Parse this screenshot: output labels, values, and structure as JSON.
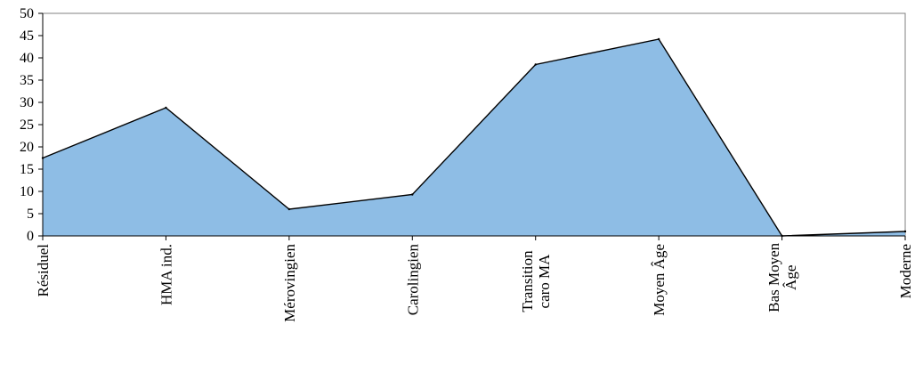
{
  "chart_data": {
    "type": "area",
    "categories": [
      "Résiduel",
      "HMA ind.",
      "Mérovingien",
      "Carolingien",
      "Transition caro MA",
      "Moyen Âge",
      "Bas Moyen Âge",
      "Moderne"
    ],
    "category_lines": [
      [
        "Résiduel"
      ],
      [
        "HMA ind."
      ],
      [
        "Mérovingien"
      ],
      [
        "Carolingien"
      ],
      [
        "Transition",
        "caro MA"
      ],
      [
        "Moyen Âge"
      ],
      [
        "Bas Moyen",
        "Âge"
      ],
      [
        "Moderne"
      ]
    ],
    "series": [
      {
        "values": [
          17.5,
          28.8,
          6.0,
          9.3,
          38.5,
          44.2,
          0.0,
          1.0
        ]
      }
    ],
    "title": "",
    "xlabel": "",
    "ylabel": "",
    "ylim": [
      0,
      50
    ],
    "yticks": [
      0,
      5,
      10,
      15,
      20,
      25,
      30,
      35,
      40,
      45,
      50
    ],
    "grid": false,
    "legend": "none",
    "colors": {
      "fill": "#8ebde5",
      "stroke": "#000000",
      "axis": "#808080"
    }
  }
}
